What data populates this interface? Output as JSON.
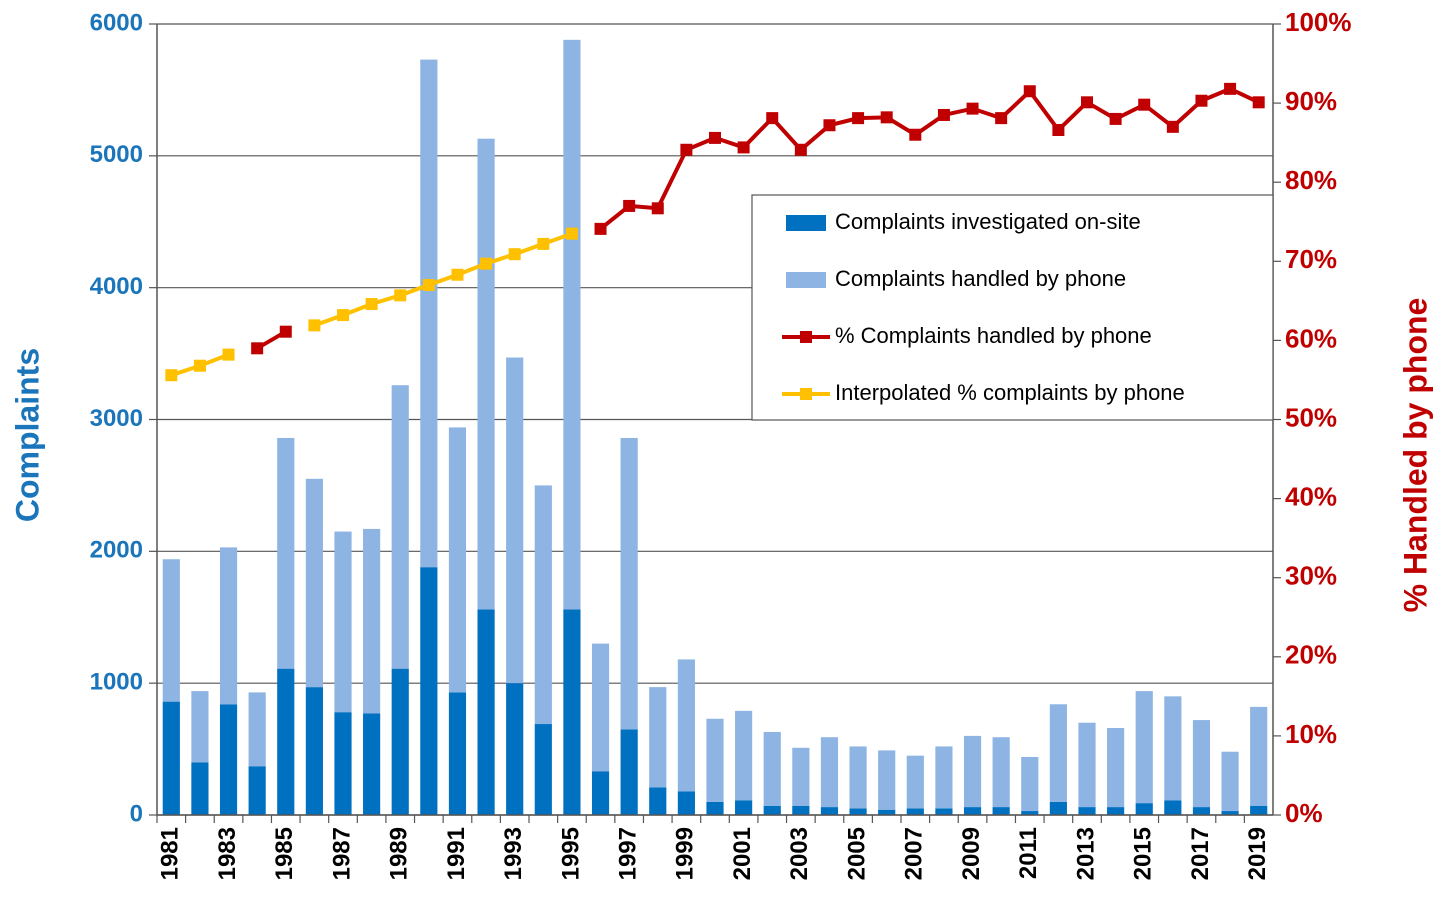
{
  "chart_data": {
    "type": "bar",
    "stacked": true,
    "categories": [
      "1981",
      null,
      "1983",
      null,
      "1985",
      null,
      "1987",
      null,
      "1989",
      null,
      "1991",
      null,
      "1993",
      null,
      "1995",
      null,
      "1997",
      null,
      "1999",
      null,
      "2001",
      null,
      "2003",
      null,
      "2005",
      null,
      "2007",
      null,
      "2009",
      null,
      "2011",
      null,
      "2013",
      null,
      "2015",
      null,
      "2017",
      null,
      "2019"
    ],
    "series": [
      {
        "name": "Complaints investigated on-site",
        "type": "bar",
        "color": "#0070c0",
        "values": [
          860,
          400,
          840,
          370,
          1110,
          970,
          780,
          770,
          1110,
          1880,
          930,
          1560,
          1000,
          690,
          1560,
          330,
          650,
          210,
          180,
          100,
          110,
          70,
          70,
          60,
          50,
          40,
          50,
          50,
          60,
          60,
          30,
          100,
          60,
          60,
          90,
          110,
          60,
          30,
          70
        ]
      },
      {
        "name": "Complaints handled by phone",
        "type": "bar",
        "color": "#8db4e2",
        "values": [
          1080,
          540,
          1190,
          560,
          1750,
          1580,
          1370,
          1400,
          2150,
          3850,
          2010,
          3570,
          2470,
          1810,
          4320,
          970,
          2210,
          760,
          1000,
          630,
          680,
          560,
          440,
          530,
          470,
          450,
          400,
          470,
          540,
          530,
          410,
          740,
          640,
          600,
          850,
          790,
          660,
          450,
          750
        ]
      },
      {
        "name": "% Complaints handled by phone",
        "type": "line",
        "axis": "y2",
        "color": "#c00000",
        "values": [
          null,
          null,
          null,
          59.0,
          61.1,
          null,
          null,
          null,
          null,
          null,
          null,
          null,
          null,
          null,
          null,
          74.1,
          77.0,
          76.7,
          84.1,
          85.6,
          84.4,
          88.1,
          84.1,
          87.2,
          88.1,
          88.2,
          86.0,
          88.5,
          89.3,
          88.1,
          91.5,
          86.6,
          90.1,
          88.0,
          89.8,
          87.0,
          90.3,
          91.8,
          90.1
        ]
      },
      {
        "name": "Interpolated % complaints by phone",
        "type": "line",
        "axis": "y2",
        "color": "#ffc000",
        "values": [
          55.6,
          56.8,
          58.2,
          null,
          null,
          61.9,
          63.2,
          64.6,
          65.7,
          67.0,
          68.3,
          69.7,
          70.9,
          72.2,
          73.5,
          null,
          null,
          null,
          null,
          null,
          null,
          null,
          null,
          null,
          null,
          null,
          null,
          null,
          null,
          null,
          null,
          null,
          null,
          null,
          null,
          null,
          null,
          null,
          null
        ]
      }
    ],
    "y_label": "Complaints",
    "y2_label": "% Handled by phone",
    "ylim": [
      0,
      6000
    ],
    "yticks": [
      0,
      1000,
      2000,
      3000,
      4000,
      5000,
      6000
    ],
    "y2lim": [
      0,
      100
    ],
    "y2ticks": [
      {
        "value": 0,
        "label": "0%"
      },
      {
        "value": 10,
        "label": "10%"
      },
      {
        "value": 20,
        "label": "20%"
      },
      {
        "value": 30,
        "label": "30%"
      },
      {
        "value": 40,
        "label": "40%"
      },
      {
        "value": 50,
        "label": "50%"
      },
      {
        "value": 60,
        "label": "60%"
      },
      {
        "value": 70,
        "label": "70%"
      },
      {
        "value": 80,
        "label": "80%"
      },
      {
        "value": 90,
        "label": "90%"
      },
      {
        "value": 100,
        "label": "100%"
      }
    ],
    "y_color": "#1a75bb",
    "y2_color": "#c00000",
    "grid": true,
    "legend": "upper right"
  }
}
